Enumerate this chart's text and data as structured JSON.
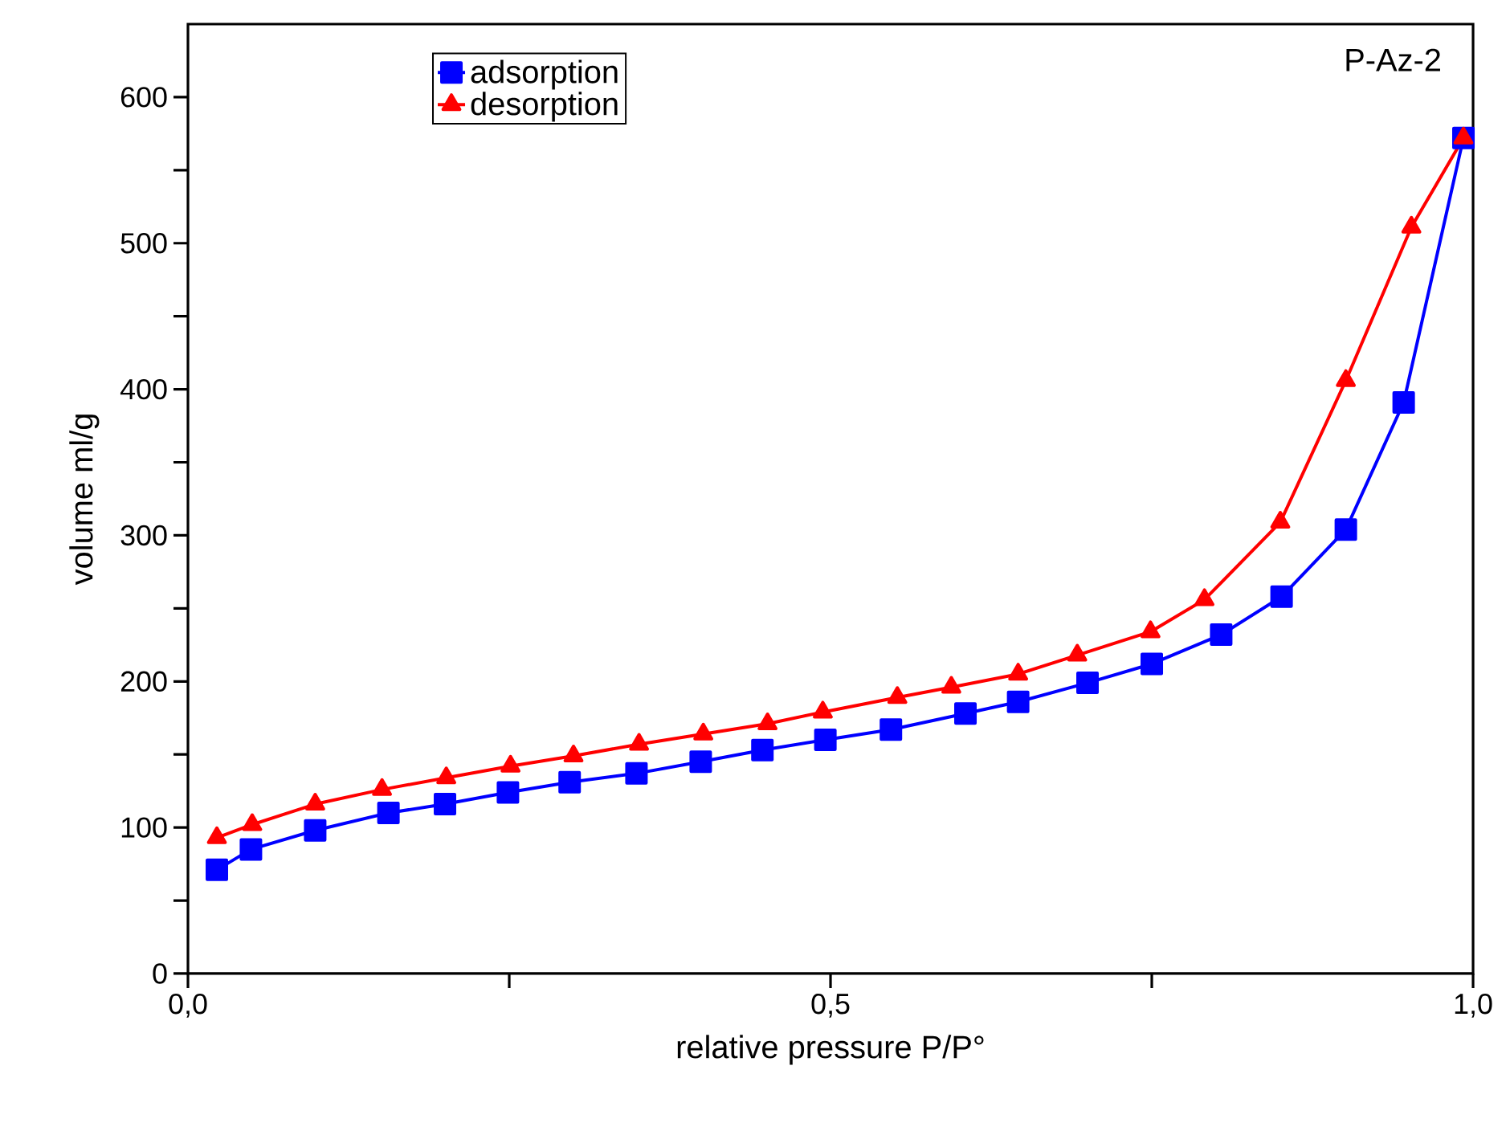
{
  "chart_data": {
    "type": "line",
    "xlabel": "relative pressure P/P°",
    "ylabel": "volume ml/g",
    "annotations": [
      "P-Az-2"
    ],
    "xlim": [
      0,
      1
    ],
    "ylim": [
      0,
      650
    ],
    "xticks": [
      {
        "value": 0,
        "label": "0,0"
      },
      {
        "value": 0.25,
        "label": null
      },
      {
        "value": 0.5,
        "label": "0,5"
      },
      {
        "value": 0.75,
        "label": null
      },
      {
        "value": 1,
        "label": "1,0"
      }
    ],
    "yticks": [
      0,
      {
        "value": 50,
        "label": null
      },
      100,
      {
        "value": 150,
        "label": null
      },
      200,
      {
        "value": 250,
        "label": null
      },
      300,
      {
        "value": 350,
        "label": null
      },
      400,
      {
        "value": 450,
        "label": null
      },
      500,
      {
        "value": 550,
        "label": null
      },
      600
    ],
    "legend": "top left",
    "line_style": "solid",
    "grid": false,
    "series": [
      {
        "name": "adsorption",
        "color": "#0000ff",
        "marker": "square",
        "x": [
          0.0225,
          0.049,
          0.099,
          0.156,
          0.2,
          0.249,
          0.297,
          0.349,
          0.399,
          0.447,
          0.496,
          0.547,
          0.605,
          0.646,
          0.7,
          0.75,
          0.804,
          0.851,
          0.901,
          0.946,
          0.9925
        ],
        "values": [
          71,
          85,
          98,
          110,
          116,
          124,
          131,
          137,
          145,
          153,
          160,
          167,
          178,
          186,
          199,
          212,
          232,
          258,
          304,
          391,
          572
        ]
      },
      {
        "name": "desorption",
        "color": "#ff0000",
        "marker": "triangle",
        "x": [
          0.0225,
          0.05,
          0.099,
          0.151,
          0.201,
          0.251,
          0.3,
          0.351,
          0.401,
          0.451,
          0.494,
          0.552,
          0.594,
          0.646,
          0.692,
          0.749,
          0.791,
          0.85,
          0.901,
          0.952,
          0.9925
        ],
        "values": [
          93,
          102,
          116,
          126,
          134,
          142,
          149,
          157,
          164,
          171,
          179,
          189,
          196,
          205,
          218,
          234,
          256,
          309,
          406,
          511,
          572
        ]
      }
    ]
  }
}
